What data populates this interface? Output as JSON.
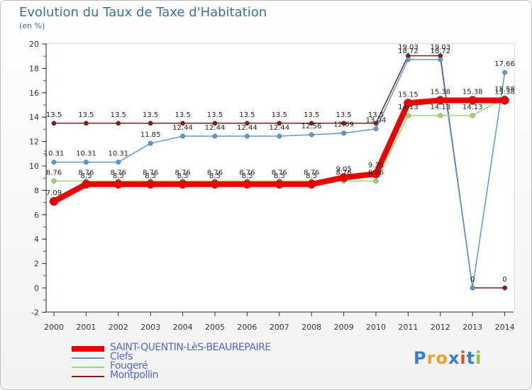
{
  "title": "Evolution du Taux de Taxe d'Habitation",
  "unit_label": "(en %)",
  "logo_text": "Proxiti",
  "logo_colors": [
    "#3a7bd5",
    "#f0a030",
    "#f0a030",
    "#3a7bd5",
    "#e05020",
    "#3a7bd5",
    "#90c030"
  ],
  "chart_data": {
    "type": "line",
    "title": "Evolution du Taux de Taxe d'Habitation",
    "ylabel": "(en %)",
    "xlabel": "",
    "ylim": [
      -2,
      20
    ],
    "yticks": [
      -2,
      0,
      2,
      4,
      6,
      8,
      10,
      12,
      14,
      16,
      18,
      20
    ],
    "categories": [
      "2000",
      "2001",
      "2002",
      "2003",
      "2004",
      "2005",
      "2006",
      "2007",
      "2008",
      "2009",
      "2010",
      "2011",
      "2012",
      "2013",
      "2014"
    ],
    "series": [
      {
        "name": "Montpollin",
        "color": "#7a1f1f",
        "values": [
          13.5,
          13.5,
          13.5,
          13.5,
          13.5,
          13.5,
          13.5,
          13.5,
          13.5,
          13.5,
          13.5,
          19.03,
          19.03,
          0,
          0
        ],
        "labels": [
          "13.5",
          "13.5",
          "13.5",
          "13.5",
          "13.5",
          "13.5",
          "13.5",
          "13.5",
          "13.5",
          "13.5",
          "13.5",
          "19.03",
          "19.03",
          "0",
          "0"
        ]
      },
      {
        "name": "Clefs",
        "color": "#5b9bd5",
        "values": [
          10.31,
          10.31,
          10.31,
          11.85,
          12.44,
          12.44,
          12.44,
          12.44,
          12.56,
          12.69,
          13.04,
          18.72,
          18.72,
          0,
          17.66
        ],
        "labels": [
          "10.31",
          "10.31",
          "10.31",
          "11.85",
          "12.44",
          "12.44",
          "12.44",
          "12.44",
          "12.56",
          "12.69",
          "13.04",
          "18.72",
          "18.72",
          "0",
          "17.66"
        ]
      },
      {
        "name": "Fougeré",
        "color": "#99dd66",
        "values": [
          8.76,
          8.76,
          8.76,
          8.76,
          8.76,
          8.76,
          8.76,
          8.76,
          8.76,
          8.76,
          8.76,
          14.13,
          14.13,
          14.13,
          15.58
        ],
        "labels": [
          "8.76",
          "8.76",
          "8.76",
          "8.76",
          "8.76",
          "8.76",
          "8.76",
          "8.76",
          "8.76",
          "8.76",
          "8.76",
          "14.13",
          "14.13",
          "14.13",
          "15.58"
        ]
      },
      {
        "name": "SAINT-QUENTIN-LèS-BEAUREPAIRE",
        "color": "#ee0000",
        "values": [
          7.09,
          8.5,
          8.5,
          8.5,
          8.5,
          8.5,
          8.5,
          8.5,
          8.5,
          9.05,
          9.35,
          15.15,
          15.38,
          15.38,
          15.38
        ],
        "labels": [
          "7.09",
          "8.5",
          "8.5",
          "8.5",
          "8.5",
          "8.5",
          "8.5",
          "8.5",
          "8.5",
          "9.05",
          "9.35",
          "15.15",
          "15.38",
          "15.38",
          "15.38"
        ]
      }
    ],
    "legend_order": [
      "SAINT-QUENTIN-LèS-BEAUREPAIRE",
      "Clefs",
      "Fougeré",
      "Montpollin"
    ],
    "grid": false
  }
}
